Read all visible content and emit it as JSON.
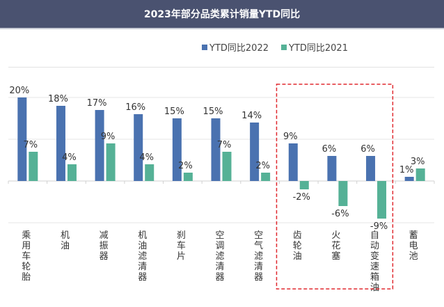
{
  "chart_data": {
    "type": "bar",
    "title": "2023年部分品类累计销量YTD同比",
    "categories": [
      "乘用车轮胎",
      "机油",
      "减振器",
      "机油滤清器",
      "刹车片",
      "空调滤清器",
      "空气滤清器",
      "齿轮油",
      "火花塞",
      "自动变速箱油",
      "蓄电池"
    ],
    "series": [
      {
        "name": "YTD同比2022",
        "color": "#4a72b0",
        "values": [
          20,
          18,
          17,
          16,
          15,
          15,
          14,
          9,
          6,
          6,
          1
        ]
      },
      {
        "name": "YTD同比2021",
        "color": "#55b196",
        "values": [
          7,
          4,
          9,
          4,
          2,
          7,
          2,
          -2,
          -6,
          -9,
          3
        ]
      }
    ],
    "value_suffix": "%",
    "ylim": [
      -10,
      20
    ],
    "grid": true,
    "legend": "top-center",
    "highlight": {
      "categories": [
        "齿轮油",
        "火花塞",
        "自动变速箱油"
      ],
      "color": "#e0282e",
      "style": "dashed"
    }
  }
}
